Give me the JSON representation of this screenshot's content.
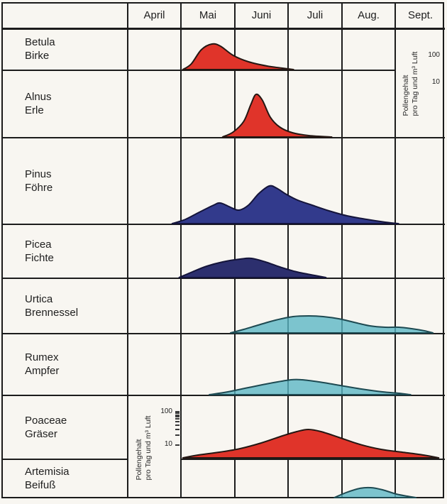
{
  "header": {
    "months": [
      "April",
      "Mai",
      "Juni",
      "Juli",
      "Aug.",
      "Sept."
    ]
  },
  "rows": [
    {
      "latin": "Betula",
      "german": "Birke"
    },
    {
      "latin": "Alnus",
      "german": "Erle"
    },
    {
      "latin": "Pinus",
      "german": "Föhre"
    },
    {
      "latin": "Picea",
      "german": "Fichte"
    },
    {
      "latin": "Urtica",
      "german": "Brennessel"
    },
    {
      "latin": "Rumex",
      "german": "Ampfer"
    },
    {
      "latin": "Poaceae",
      "german": "Gräser"
    },
    {
      "latin": "Artemisia",
      "german": "Beifuß"
    }
  ],
  "axis_right": {
    "line1": "Pollengehalt",
    "line2": "pro Tag und m³ Luft",
    "v100": "100",
    "v10": "10"
  },
  "axis_left": {
    "line1": "Pollengehalt",
    "line2": "pro Tag und m³ Luft",
    "v100": "100",
    "v10": "10",
    "tick_offsets": [
      0,
      2,
      5,
      7,
      10,
      14,
      19,
      25,
      33,
      47
    ]
  },
  "colors": {
    "red": "#e0342a",
    "navy": "#323a8c",
    "navy_dark": "#2c2f6e",
    "cyan": "#58b6c4",
    "stroke_red": "#241713",
    "stroke_navy": "#14143a",
    "stroke_cyan": "#1e4a52",
    "grid": "#1c1c1c",
    "paper": "#f8f6f1"
  },
  "chart_data": {
    "type": "area",
    "x_axis": {
      "labels": [
        "April",
        "Mai",
        "Juni",
        "Juli",
        "Aug.",
        "Sept."
      ],
      "unit": "month",
      "range": [
        0,
        6
      ]
    },
    "y_axis": {
      "scale": "log",
      "ticks": [
        10,
        100
      ],
      "label": "Pollengehalt pro Tag und m³ Luft",
      "y_unit": "px above row baseline; ≈47 px per log10 decade (10→100)"
    },
    "series": [
      {
        "id": "betula",
        "name": "Betula (Birke)",
        "color_key": "red",
        "stroke_key": "red",
        "translucent": false,
        "points": [
          [
            1.04,
            0
          ],
          [
            1.2,
            8
          ],
          [
            1.39,
            28
          ],
          [
            1.59,
            36
          ],
          [
            1.75,
            33
          ],
          [
            1.99,
            20
          ],
          [
            2.28,
            11
          ],
          [
            2.63,
            5
          ],
          [
            2.92,
            2
          ],
          [
            3.13,
            0
          ]
        ]
      },
      {
        "id": "alnus",
        "name": "Alnus (Erle)",
        "color_key": "red",
        "stroke_key": "red",
        "translucent": false,
        "points": [
          [
            1.79,
            0
          ],
          [
            1.99,
            7
          ],
          [
            2.19,
            22
          ],
          [
            2.32,
            45
          ],
          [
            2.42,
            60
          ],
          [
            2.54,
            52
          ],
          [
            2.69,
            28
          ],
          [
            2.87,
            14
          ],
          [
            3.11,
            6
          ],
          [
            3.42,
            2
          ],
          [
            3.85,
            0
          ]
        ]
      },
      {
        "id": "pinus",
        "name": "Pinus (Föhre)",
        "color_key": "navy",
        "stroke_key": "navy",
        "translucent": false,
        "points": [
          [
            0.84,
            0
          ],
          [
            1.09,
            6
          ],
          [
            1.35,
            16
          ],
          [
            1.62,
            26
          ],
          [
            1.75,
            29
          ],
          [
            1.94,
            23
          ],
          [
            2.1,
            19
          ],
          [
            2.28,
            26
          ],
          [
            2.47,
            42
          ],
          [
            2.67,
            53
          ],
          [
            2.81,
            50
          ],
          [
            3.0,
            41
          ],
          [
            3.21,
            33
          ],
          [
            3.48,
            26
          ],
          [
            3.8,
            18
          ],
          [
            4.14,
            11
          ],
          [
            4.51,
            6
          ],
          [
            4.86,
            2
          ],
          [
            5.11,
            0
          ]
        ]
      },
      {
        "id": "picea",
        "name": "Picea (Fichte)",
        "color_key": "navy_dark",
        "stroke_key": "navy",
        "translucent": false,
        "points": [
          [
            0.97,
            0
          ],
          [
            1.22,
            8
          ],
          [
            1.49,
            16
          ],
          [
            1.79,
            22
          ],
          [
            2.12,
            26
          ],
          [
            2.34,
            27
          ],
          [
            2.6,
            22
          ],
          [
            2.87,
            15
          ],
          [
            3.19,
            8
          ],
          [
            3.53,
            3
          ],
          [
            3.74,
            0
          ]
        ]
      },
      {
        "id": "urtica",
        "name": "Urtica (Brennessel)",
        "color_key": "cyan",
        "stroke_key": "cyan",
        "translucent": true,
        "points": [
          [
            1.94,
            0
          ],
          [
            2.19,
            5
          ],
          [
            2.46,
            11
          ],
          [
            2.79,
            18
          ],
          [
            3.12,
            23
          ],
          [
            3.42,
            24
          ],
          [
            3.69,
            23
          ],
          [
            3.98,
            20
          ],
          [
            4.27,
            15
          ],
          [
            4.57,
            10
          ],
          [
            4.86,
            8
          ],
          [
            5.12,
            8
          ],
          [
            5.36,
            6
          ],
          [
            5.6,
            3
          ],
          [
            5.76,
            0
          ]
        ]
      },
      {
        "id": "rumex",
        "name": "Rumex (Ampfer)",
        "color_key": "cyan",
        "stroke_key": "cyan",
        "translucent": true,
        "points": [
          [
            1.54,
            0
          ],
          [
            1.89,
            4
          ],
          [
            2.28,
            10
          ],
          [
            2.68,
            16
          ],
          [
            3.08,
            21
          ],
          [
            3.29,
            21
          ],
          [
            3.61,
            18
          ],
          [
            4.01,
            13
          ],
          [
            4.41,
            8
          ],
          [
            4.81,
            4
          ],
          [
            5.12,
            2
          ],
          [
            5.34,
            0
          ]
        ]
      },
      {
        "id": "poaceae",
        "name": "Poaceae (Gräser)",
        "color_key": "red",
        "stroke_key": "red",
        "translucent": false,
        "points": [
          [
            1.04,
            0
          ],
          [
            1.33,
            4
          ],
          [
            1.73,
            8
          ],
          [
            2.12,
            13
          ],
          [
            2.52,
            21
          ],
          [
            2.92,
            31
          ],
          [
            3.19,
            37
          ],
          [
            3.41,
            40
          ],
          [
            3.65,
            37
          ],
          [
            3.98,
            29
          ],
          [
            4.38,
            19
          ],
          [
            4.78,
            12
          ],
          [
            5.18,
            8
          ],
          [
            5.58,
            4
          ],
          [
            5.87,
            0
          ]
        ]
      },
      {
        "id": "artemisia",
        "name": "Artemisia (Beifuß)",
        "color_key": "cyan",
        "stroke_key": "cyan",
        "translucent": true,
        "points": [
          [
            3.9,
            0
          ],
          [
            4.12,
            7
          ],
          [
            4.38,
            13
          ],
          [
            4.59,
            14
          ],
          [
            4.81,
            11
          ],
          [
            5.07,
            5
          ],
          [
            5.28,
            2
          ],
          [
            5.44,
            0
          ]
        ]
      }
    ]
  }
}
